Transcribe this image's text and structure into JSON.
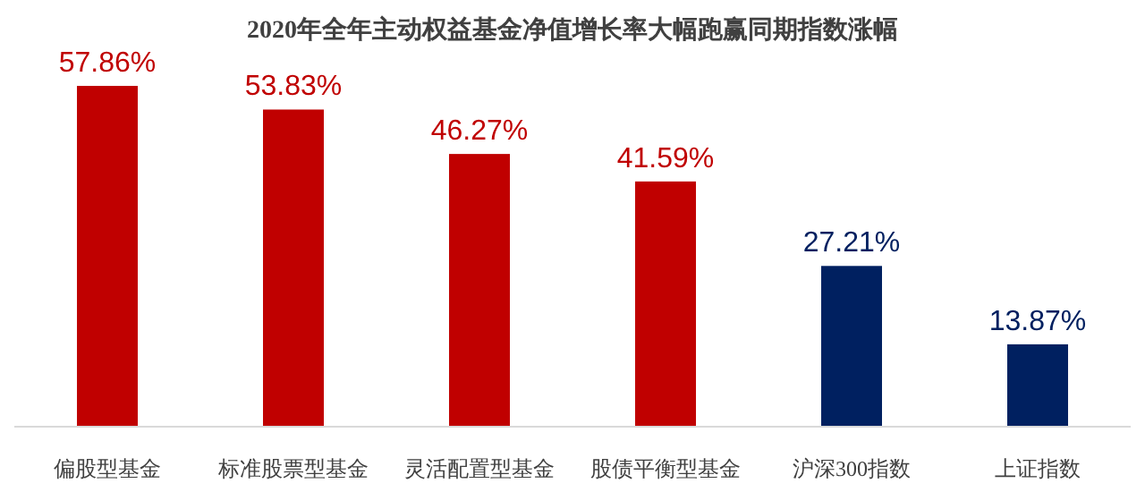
{
  "chart_data": {
    "type": "bar",
    "title": "2020年全年主动权益基金净值增长率大幅跑赢同期指数涨幅",
    "categories": [
      "偏股型基金",
      "标准股票型基金",
      "灵活配置型基金",
      "股债平衡型基金",
      "沪深300指数",
      "上证指数"
    ],
    "values": [
      57.86,
      53.83,
      46.27,
      41.59,
      27.21,
      13.87
    ],
    "colors": [
      "#c00000",
      "#c00000",
      "#c00000",
      "#c00000",
      "#002060",
      "#002060"
    ],
    "value_labels": [
      "57.86%",
      "53.83%",
      "46.27%",
      "41.59%",
      "27.21%",
      "13.87%"
    ]
  }
}
